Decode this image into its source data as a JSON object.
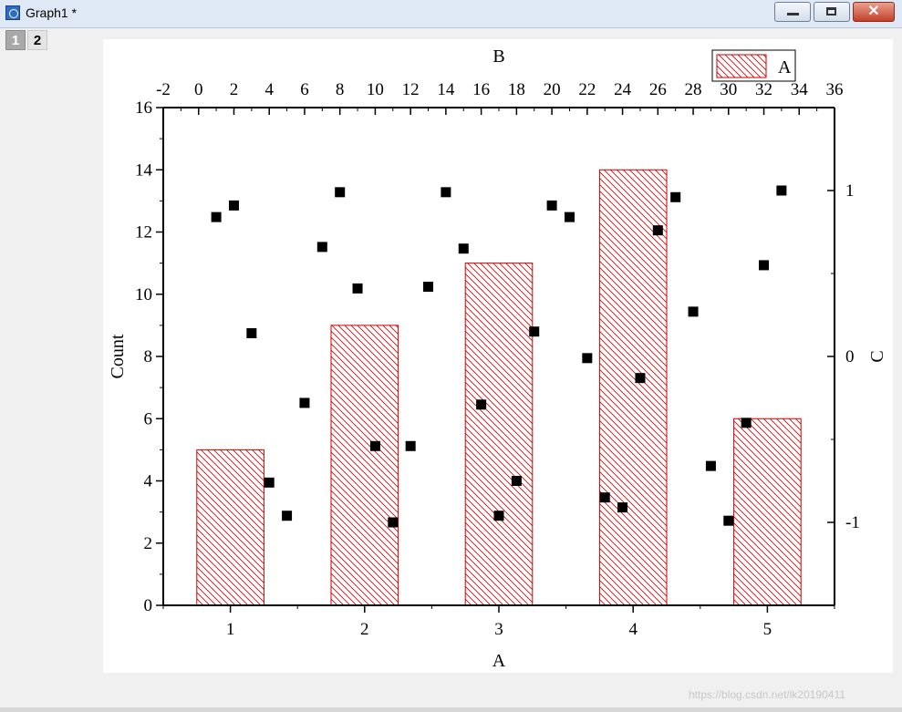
{
  "window": {
    "title": "Graph1 *",
    "close_glyph": "✕"
  },
  "tabs": [
    {
      "label": "1"
    },
    {
      "label": "2"
    }
  ],
  "watermark": "https://blog.csdn.net/lk20190411",
  "colors": {
    "bar_stroke": "#cc0000",
    "hatch": "#cc0000",
    "marker": "#000000"
  },
  "chart_data": {
    "type": "bar",
    "categories": [
      "1",
      "2",
      "3",
      "4",
      "5"
    ],
    "series": [
      {
        "name": "A",
        "values": [
          5,
          9,
          11,
          14,
          6
        ]
      }
    ],
    "xlabel": "A",
    "ylabel": "Count",
    "ylim": [
      0,
      16
    ],
    "y_ticks": [
      "0",
      "2",
      "4",
      "6",
      "8",
      "10",
      "12",
      "14",
      "16"
    ],
    "x_ticks": [
      "1",
      "2",
      "3",
      "4",
      "5"
    ],
    "x_range": [
      0.5,
      5.5
    ],
    "legend": {
      "position": "top-right",
      "entry": "A"
    },
    "top_axis": {
      "label": "B",
      "range": [
        -2,
        36
      ],
      "ticks": [
        "-2",
        "0",
        "2",
        "4",
        "6",
        "8",
        "10",
        "12",
        "14",
        "16",
        "18",
        "20",
        "22",
        "24",
        "26",
        "28",
        "30",
        "32",
        "34",
        "36"
      ]
    },
    "right_axis": {
      "label": "C",
      "range": [
        -1.5,
        1.5
      ],
      "ticks": [
        "-1",
        "0",
        "1"
      ],
      "tick_values": [
        -1,
        0,
        1
      ]
    },
    "scatter": {
      "marker": "square",
      "points": [
        [
          1,
          0.84
        ],
        [
          2,
          0.91
        ],
        [
          3,
          0.14
        ],
        [
          4,
          -0.76
        ],
        [
          5,
          -0.96
        ],
        [
          6,
          -0.28
        ],
        [
          7,
          0.66
        ],
        [
          8,
          0.99
        ],
        [
          9,
          0.41
        ],
        [
          10,
          -0.54
        ],
        [
          11,
          -1.0
        ],
        [
          12,
          -0.54
        ],
        [
          13,
          0.42
        ],
        [
          14,
          0.99
        ],
        [
          15,
          0.65
        ],
        [
          16,
          -0.29
        ],
        [
          17,
          -0.96
        ],
        [
          18,
          -0.75
        ],
        [
          19,
          0.15
        ],
        [
          20,
          0.91
        ],
        [
          21,
          0.84
        ],
        [
          22,
          -0.01
        ],
        [
          23,
          -0.85
        ],
        [
          24,
          -0.91
        ],
        [
          25,
          -0.13
        ],
        [
          26,
          0.76
        ],
        [
          27,
          0.96
        ],
        [
          28,
          0.27
        ],
        [
          29,
          -0.66
        ],
        [
          30,
          -0.99
        ],
        [
          31,
          -0.4
        ],
        [
          32,
          0.55
        ],
        [
          33,
          1.0
        ]
      ]
    }
  }
}
